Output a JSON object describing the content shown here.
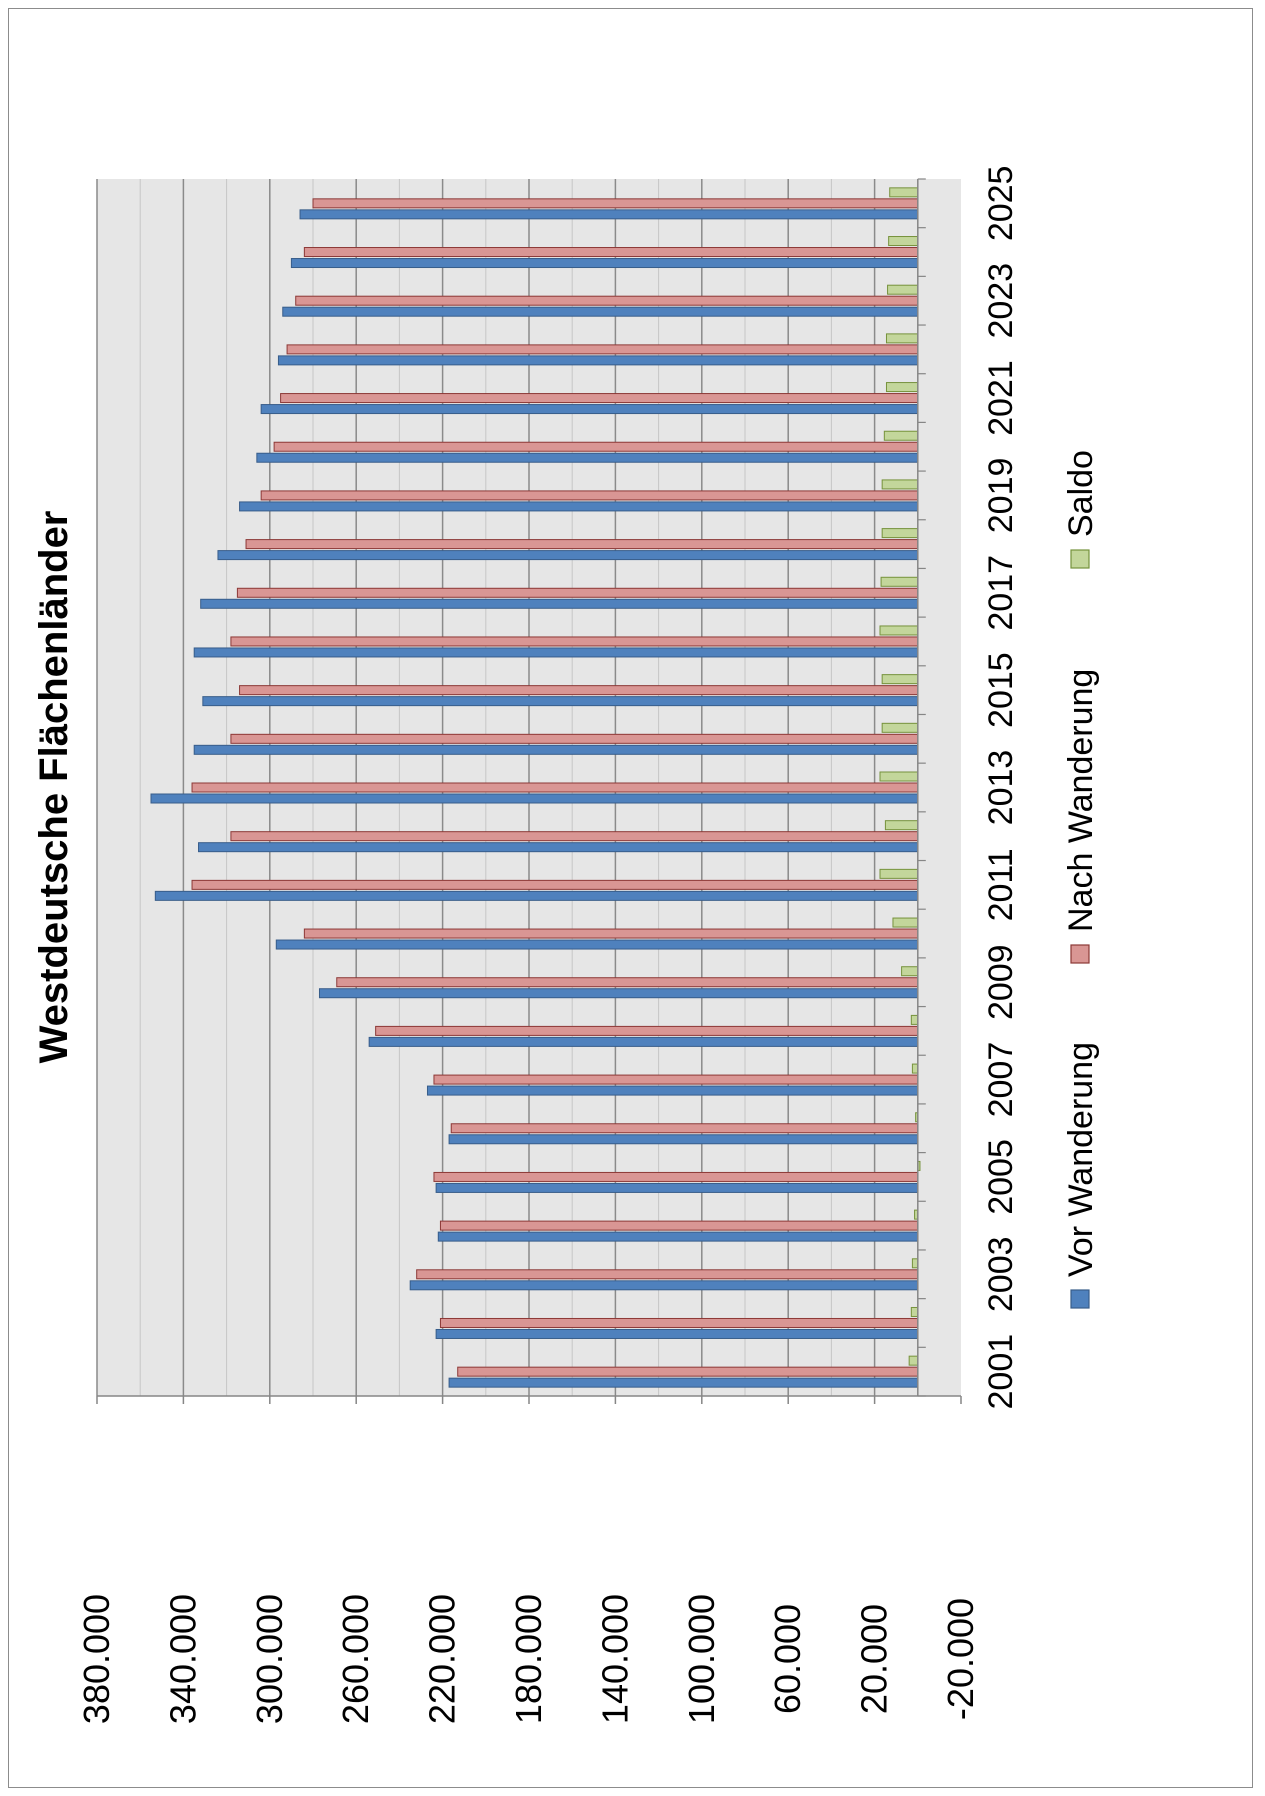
{
  "chart_data": {
    "type": "bar",
    "orientation": "horizontal-rotated",
    "title": "Westdeutsche Flächenländer",
    "xlabel": "",
    "ylabel": "",
    "ylim": [
      -20000,
      380000
    ],
    "y_ticks": [
      -20000,
      20000,
      60000,
      100000,
      140000,
      180000,
      220000,
      260000,
      300000,
      340000,
      380000
    ],
    "y_tick_labels": [
      "-20.000",
      "20.000",
      "60.000",
      "100.000",
      "140.000",
      "180.000",
      "220.000",
      "260.000",
      "300.000",
      "340.000",
      "380.000"
    ],
    "x_tick_labels": [
      "2001",
      "2003",
      "2005",
      "2007",
      "2009",
      "2011",
      "2013",
      "2015",
      "2017",
      "2019",
      "2021",
      "2023",
      "2025"
    ],
    "categories": [
      "2001",
      "2002",
      "2003",
      "2004",
      "2005",
      "2006",
      "2007",
      "2008",
      "2009",
      "2010",
      "2011",
      "2012",
      "2013",
      "2014",
      "2015",
      "2016",
      "2017",
      "2018",
      "2019",
      "2020",
      "2021",
      "2022",
      "2023",
      "2024",
      "2025"
    ],
    "grid": true,
    "legend_position": "bottom",
    "series": [
      {
        "name": "Vor Wanderung",
        "color": "#4f81bd",
        "values": [
          217000,
          223000,
          235000,
          222000,
          223000,
          217000,
          227000,
          254000,
          277000,
          297000,
          353000,
          333000,
          355000,
          335000,
          331000,
          335000,
          332000,
          324000,
          314000,
          306000,
          304000,
          296000,
          294000,
          290000,
          286000
        ]
      },
      {
        "name": "Nach Wanderung",
        "color": "#d99694",
        "values": [
          213000,
          221000,
          232000,
          221000,
          224000,
          216000,
          224000,
          251000,
          269000,
          284000,
          336000,
          318000,
          336000,
          318000,
          314000,
          318000,
          315000,
          311000,
          304000,
          298000,
          295000,
          292000,
          288000,
          284000,
          280000
        ]
      },
      {
        "name": "Saldo",
        "color": "#c3d69b",
        "values": [
          4000,
          3000,
          2500,
          1500,
          -1000,
          1000,
          2500,
          3000,
          7500,
          11500,
          17500,
          15000,
          17500,
          16500,
          16500,
          17500,
          17000,
          16500,
          16500,
          15500,
          14500,
          14500,
          14000,
          13500,
          13000
        ]
      }
    ]
  }
}
